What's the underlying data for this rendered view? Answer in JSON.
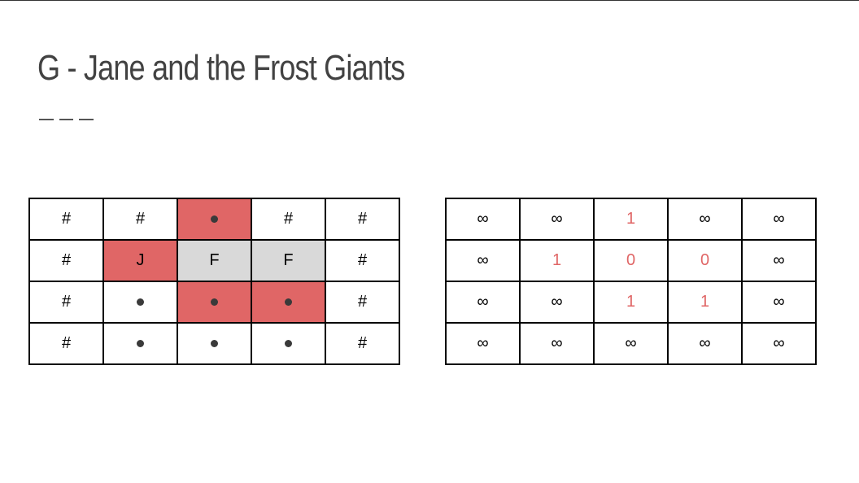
{
  "slide": {
    "title": "G - Jane and the Frost Giants"
  },
  "left_grid": {
    "rows": [
      [
        {
          "t": "#",
          "k": "wall",
          "bg": ""
        },
        {
          "t": "#",
          "k": "wall",
          "bg": ""
        },
        {
          "t": "",
          "k": "dot",
          "bg": "red"
        },
        {
          "t": "#",
          "k": "wall",
          "bg": ""
        },
        {
          "t": "#",
          "k": "wall",
          "bg": ""
        }
      ],
      [
        {
          "t": "#",
          "k": "wall",
          "bg": ""
        },
        {
          "t": "J",
          "k": "jane",
          "bg": "red"
        },
        {
          "t": "F",
          "k": "frost",
          "bg": "gray"
        },
        {
          "t": "F",
          "k": "frost",
          "bg": "gray"
        },
        {
          "t": "#",
          "k": "wall",
          "bg": ""
        }
      ],
      [
        {
          "t": "#",
          "k": "wall",
          "bg": ""
        },
        {
          "t": "",
          "k": "dot",
          "bg": ""
        },
        {
          "t": "",
          "k": "dot",
          "bg": "red"
        },
        {
          "t": "",
          "k": "dot",
          "bg": "red"
        },
        {
          "t": "#",
          "k": "wall",
          "bg": ""
        }
      ],
      [
        {
          "t": "#",
          "k": "wall",
          "bg": ""
        },
        {
          "t": "",
          "k": "dot",
          "bg": ""
        },
        {
          "t": "",
          "k": "dot",
          "bg": ""
        },
        {
          "t": "",
          "k": "dot",
          "bg": ""
        },
        {
          "t": "#",
          "k": "wall",
          "bg": ""
        }
      ]
    ]
  },
  "right_grid": {
    "rows": [
      [
        "∞",
        "∞",
        "1",
        "∞",
        "∞"
      ],
      [
        "∞",
        "1",
        "0",
        "0",
        "∞"
      ],
      [
        "∞",
        "∞",
        "1",
        "1",
        "∞"
      ],
      [
        "∞",
        "∞",
        "∞",
        "∞",
        "∞"
      ]
    ]
  },
  "colors": {
    "highlight": "#e06666",
    "frost_cell": "#d9d9d9",
    "title": "#424242"
  }
}
